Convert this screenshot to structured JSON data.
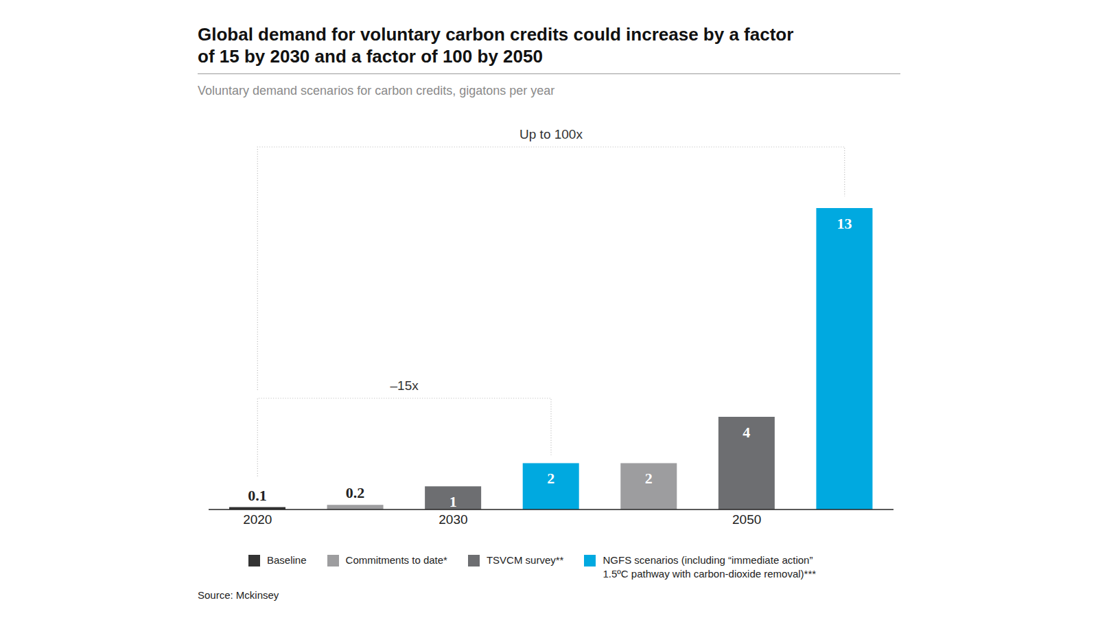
{
  "chart_data": {
    "type": "bar",
    "title": "Global demand for voluntary carbon credits could increase by a factor of 15 by 2030 and a factor of 100 by 2050",
    "subtitle": "Voluntary demand scenarios for carbon credits, gigatons per year",
    "categories": [
      "2020",
      null,
      "2030",
      null,
      null,
      "2050",
      null
    ],
    "series": [
      {
        "name": "Baseline",
        "color": "#333333",
        "values": [
          0.1,
          null,
          null,
          null,
          null,
          null,
          null
        ]
      },
      {
        "name": "Commitments to date*",
        "color": "#9d9d9f",
        "values": [
          null,
          0.2,
          null,
          null,
          2,
          null,
          null
        ]
      },
      {
        "name": "TSVCM survey**",
        "color": "#6d6e71",
        "values": [
          null,
          null,
          1,
          null,
          null,
          4,
          null
        ]
      },
      {
        "name": "NGFS scenarios (including “immediate action” 1.5ºC pathway with carbon-dioxide removal)***",
        "color": "#00a9e0",
        "values": [
          null,
          null,
          null,
          2,
          null,
          null,
          13
        ]
      }
    ],
    "ylim": [
      0,
      13
    ],
    "tick_labels": "x",
    "data_labels": true,
    "legend": "bottom",
    "annotations": [
      "Up to 100x",
      "–15x"
    ],
    "source": "Source: Mckinsey"
  }
}
